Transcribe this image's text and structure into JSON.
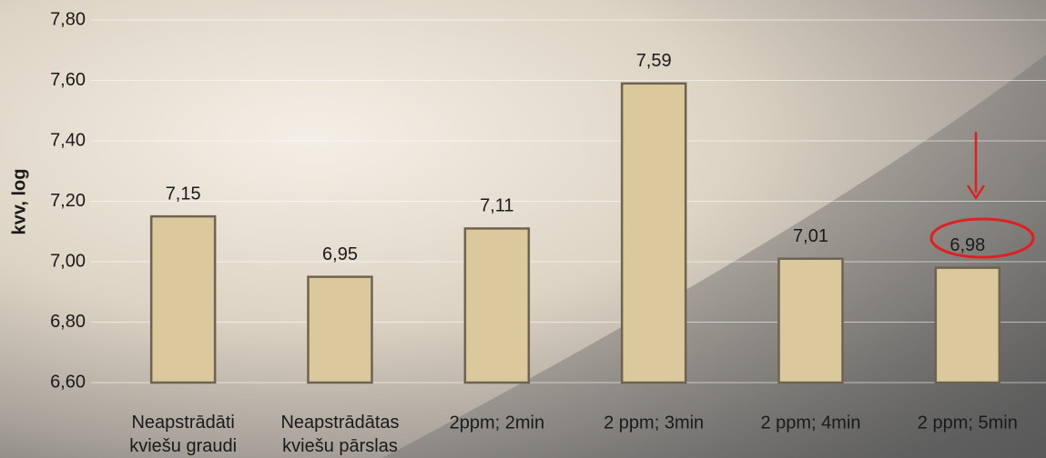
{
  "chart_data": {
    "type": "bar",
    "y_label": "kvv, log",
    "categories": [
      "Neapstrādāti\nkviešu graudi",
      "Neapstrādātas\nkviešu pārslas",
      "2ppm; 2min",
      "2 ppm; 3min",
      "2 ppm; 4min",
      "2 ppm; 5min"
    ],
    "values": [
      7.15,
      6.95,
      7.11,
      7.59,
      7.01,
      6.98
    ],
    "value_labels": [
      "7,15",
      "6,95",
      "7,11",
      "7,59",
      "7,01",
      "6,98"
    ],
    "color": "#d9c99d",
    "ylim": [
      6.6,
      7.8
    ],
    "yticks": [
      {
        "value": 6.6,
        "label": "6,60"
      },
      {
        "value": 6.8,
        "label": "6,80"
      },
      {
        "value": 7.0,
        "label": "7,00"
      },
      {
        "value": 7.2,
        "label": "7,20"
      },
      {
        "value": 7.4,
        "label": "7,40"
      },
      {
        "value": 7.6,
        "label": "7,60"
      },
      {
        "value": 7.8,
        "label": "7,80"
      }
    ],
    "grid": true
  }
}
